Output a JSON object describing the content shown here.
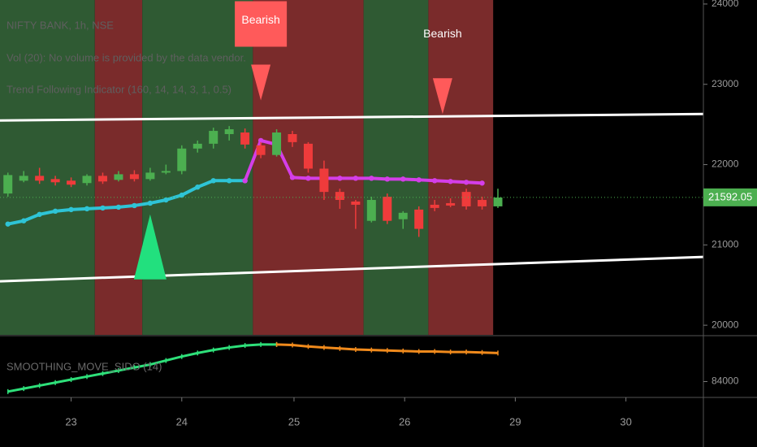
{
  "chart_data": [
    {
      "type": "candlestick",
      "title": "NIFTY BANK, 1h, NSE",
      "subtitles": [
        "Vol (20): No volume is provided by the data vendor.",
        "Trend Following Indicator (160, 14, 14, 3, 1, 0.5)"
      ],
      "xlim": [
        -0.5,
        44
      ],
      "ylim": [
        19880,
        24050
      ],
      "yticks": [
        20000,
        21000,
        22000,
        23000,
        24000
      ],
      "up_color": "#4caf50",
      "down_color": "#ef3b3b",
      "candles": {
        "x": [
          0,
          1,
          2,
          3,
          4,
          5,
          6,
          7,
          8,
          9,
          10,
          11,
          12,
          13,
          14,
          15,
          16,
          17,
          18,
          19,
          20,
          21,
          22,
          23,
          24,
          25,
          26,
          27,
          28,
          29,
          30,
          31
        ],
        "open": [
          21640,
          21800,
          21860,
          21820,
          21800,
          21770,
          21860,
          21810,
          21880,
          21820,
          21900,
          21920,
          22200,
          22260,
          22380,
          22400,
          22240,
          22120,
          22380,
          22260,
          21950,
          21660,
          21540,
          21300,
          21600,
          21320,
          21440,
          21500,
          21520,
          21660,
          21560,
          21480
        ],
        "high": [
          21900,
          21920,
          21960,
          21860,
          21840,
          21880,
          21900,
          21920,
          21930,
          21960,
          22000,
          22240,
          22300,
          22460,
          22480,
          22450,
          22280,
          22440,
          22420,
          22280,
          22050,
          21700,
          21560,
          21600,
          21640,
          21420,
          21480,
          21560,
          21580,
          21700,
          21600,
          21700
        ],
        "low": [
          21600,
          21780,
          21760,
          21740,
          21720,
          21740,
          21760,
          21790,
          21790,
          21800,
          21880,
          21880,
          22150,
          22200,
          22300,
          22200,
          22080,
          22100,
          22220,
          21900,
          21560,
          21450,
          21200,
          21280,
          21260,
          21200,
          21100,
          21420,
          21470,
          21440,
          21440,
          21460
        ],
        "close": [
          21870,
          21860,
          21800,
          21780,
          21750,
          21860,
          21790,
          21880,
          21820,
          21900,
          21920,
          22200,
          22260,
          22420,
          22440,
          22250,
          22120,
          22400,
          22280,
          21950,
          21660,
          21560,
          21500,
          21560,
          21300,
          21400,
          21200,
          21460,
          21490,
          21480,
          21480,
          21590
        ]
      },
      "bands": [
        {
          "from": -0.5,
          "to": 5.5,
          "color": "#2f5a33"
        },
        {
          "from": 5.5,
          "to": 8.5,
          "color": "#7a2b2b"
        },
        {
          "from": 8.5,
          "to": 15.5,
          "color": "#2f5a33"
        },
        {
          "from": 15.5,
          "to": 22.5,
          "color": "#7a2b2b"
        },
        {
          "from": 22.5,
          "to": 26.6,
          "color": "#2f5a33"
        },
        {
          "from": 26.6,
          "to": 30.7,
          "color": "#7a2b2b"
        }
      ],
      "series": [
        {
          "color": "#2ec4d6",
          "x": [
            0,
            1,
            2,
            3,
            4,
            5,
            6,
            7,
            8,
            9,
            10,
            11,
            12,
            13,
            14,
            15
          ],
          "values": [
            21260,
            21300,
            21380,
            21420,
            21440,
            21450,
            21460,
            21470,
            21490,
            21520,
            21560,
            21620,
            21720,
            21800,
            21800,
            21800
          ]
        },
        {
          "color": "#d43ee8",
          "x": [
            15,
            16,
            17,
            18,
            19,
            20,
            21,
            22,
            23,
            24,
            25,
            26,
            27,
            28,
            29,
            30
          ],
          "values": [
            21800,
            22300,
            22250,
            21840,
            21830,
            21830,
            21830,
            21830,
            21830,
            21820,
            21820,
            21810,
            21800,
            21790,
            21780,
            21770
          ]
        },
        {
          "color": "#ffffff",
          "x": [
            -0.5,
            44
          ],
          "values": [
            22550,
            22630
          ]
        },
        {
          "color": "#ffffff",
          "x": [
            -0.5,
            44
          ],
          "values": [
            20547,
            20850
          ]
        }
      ],
      "signals": [
        {
          "x": 9,
          "value": 21380,
          "direction": "up",
          "color": "#22e07e"
        },
        {
          "x": 16,
          "value": 22800,
          "direction": "down",
          "color": "#ff5a5a",
          "label": "Bearish"
        },
        {
          "x": 27.5,
          "value": 22630,
          "direction": "down",
          "color": "#ff5a5a",
          "label": "Bearish"
        }
      ],
      "last_price": {
        "value": 21592.05,
        "label": "21592.05",
        "color": "#4caf50"
      }
    },
    {
      "type": "line",
      "title": "SMOOTHING_MOVE_SIDO (14)",
      "xlim": [
        -0.5,
        44
      ],
      "ylim": [
        83700,
        84900
      ],
      "yticks": [
        84000
      ],
      "xticks": [
        {
          "value": 4,
          "label": "23"
        },
        {
          "value": 11,
          "label": "24"
        },
        {
          "value": 18.1,
          "label": "25"
        },
        {
          "value": 25.1,
          "label": "26"
        },
        {
          "value": 32.1,
          "label": "29"
        },
        {
          "value": 39.1,
          "label": "30"
        }
      ],
      "series": [
        {
          "color": "#2ee07a",
          "x": [
            0,
            1,
            2,
            3,
            4,
            5,
            6,
            7,
            8,
            9,
            10,
            11,
            12,
            13,
            14,
            15,
            16,
            17
          ],
          "values": [
            83800,
            83860,
            83920,
            83980,
            84040,
            84100,
            84160,
            84220,
            84280,
            84340,
            84420,
            84500,
            84570,
            84630,
            84680,
            84720,
            84740,
            84740
          ]
        },
        {
          "color": "#f08a1c",
          "x": [
            17,
            18,
            19,
            20,
            21,
            22,
            23,
            24,
            25,
            26,
            27,
            28,
            29,
            30,
            31
          ],
          "values": [
            84740,
            84730,
            84700,
            84680,
            84660,
            84640,
            84630,
            84620,
            84610,
            84600,
            84600,
            84590,
            84590,
            84580,
            84570
          ]
        }
      ]
    }
  ]
}
